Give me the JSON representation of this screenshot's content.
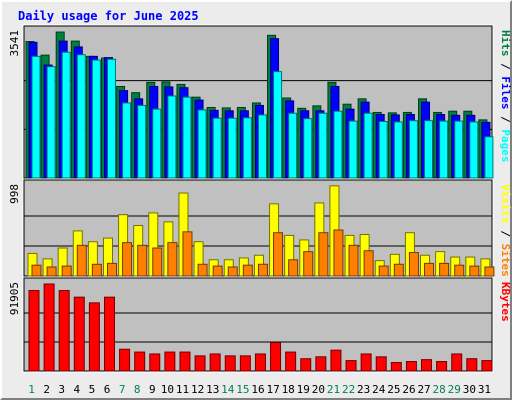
{
  "chart_data": {
    "type": "bar",
    "title": "Daily usage for June 2025",
    "categories": [
      "1",
      "2",
      "3",
      "4",
      "5",
      "6",
      "7",
      "8",
      "9",
      "10",
      "11",
      "12",
      "13",
      "14",
      "15",
      "16",
      "17",
      "18",
      "19",
      "20",
      "21",
      "22",
      "23",
      "24",
      "25",
      "26",
      "27",
      "28",
      "29",
      "30",
      "31"
    ],
    "weekend_days": [
      "1",
      "7",
      "8",
      "14",
      "15",
      "21",
      "22",
      "28",
      "29"
    ],
    "panels": [
      {
        "id": "hits-files-pages",
        "ymax_label": "3541",
        "ymax": 3541,
        "legend": [
          "Pages",
          "Files",
          "Hits"
        ],
        "series": [
          {
            "name": "Hits",
            "color": "#008040",
            "values": [
              3310,
              2980,
              3540,
              3320,
              2950,
              2910,
              2220,
              2070,
              2320,
              2330,
              2270,
              1960,
              1710,
              1700,
              1710,
              1820,
              3460,
              1940,
              1690,
              1750,
              2320,
              1790,
              1920,
              1590,
              1580,
              1590,
              1920,
              1590,
              1620,
              1620,
              1410
            ]
          },
          {
            "name": "Files",
            "color": "#0000ff",
            "values": [
              3290,
              2740,
              3320,
              3180,
              2950,
              2920,
              2120,
              1920,
              2220,
              2210,
              2190,
              1890,
              1640,
              1630,
              1630,
              1760,
              3380,
              1870,
              1630,
              1630,
              2220,
              1670,
              1840,
              1540,
              1530,
              1540,
              1840,
              1540,
              1520,
              1520,
              1350
            ]
          },
          {
            "name": "Pages",
            "color": "#00ffff",
            "values": [
              2950,
              2700,
              3050,
              2990,
              2860,
              2880,
              1820,
              1760,
              1670,
              1990,
              1960,
              1650,
              1450,
              1450,
              1460,
              1530,
              2580,
              1570,
              1440,
              1570,
              1620,
              1380,
              1570,
              1370,
              1360,
              1390,
              1390,
              1380,
              1380,
              1360,
              1000
            ]
          }
        ]
      },
      {
        "id": "visits-sites",
        "ymax_label": "998",
        "ymax": 998,
        "legend": [
          "Sites",
          "Visits"
        ],
        "series": [
          {
            "name": "Visits",
            "color": "#ffff00",
            "values": [
              250,
              190,
              310,
              500,
              380,
              420,
              680,
              560,
              700,
              600,
              920,
              380,
              180,
              180,
              200,
              230,
              800,
              450,
              400,
              810,
              1000,
              450,
              460,
              170,
              240,
              480,
              230,
              270,
              210,
              210,
              190
            ]
          },
          {
            "name": "Sites",
            "color": "#ff8000",
            "values": [
              120,
              100,
              110,
              340,
              130,
              140,
              370,
              340,
              310,
              370,
              490,
              130,
              110,
              100,
              120,
              130,
              480,
              180,
              270,
              480,
              510,
              340,
              280,
              110,
              130,
              260,
              140,
              140,
              120,
              110,
              100
            ]
          }
        ]
      },
      {
        "id": "kbytes",
        "ymax_label": "91905",
        "ymax": 91905,
        "legend": [
          "KBytes"
        ],
        "series": [
          {
            "name": "KBytes",
            "color": "#ff0000",
            "values": [
              85000,
              91905,
              85000,
              78000,
              72000,
              78000,
              23000,
              20000,
              18000,
              20000,
              20000,
              16000,
              18000,
              16000,
              16000,
              18000,
              30000,
              20000,
              13000,
              15000,
              22000,
              11000,
              18000,
              15000,
              9000,
              10000,
              12000,
              10000,
              18000,
              13000,
              11000
            ]
          }
        ]
      }
    ]
  }
}
